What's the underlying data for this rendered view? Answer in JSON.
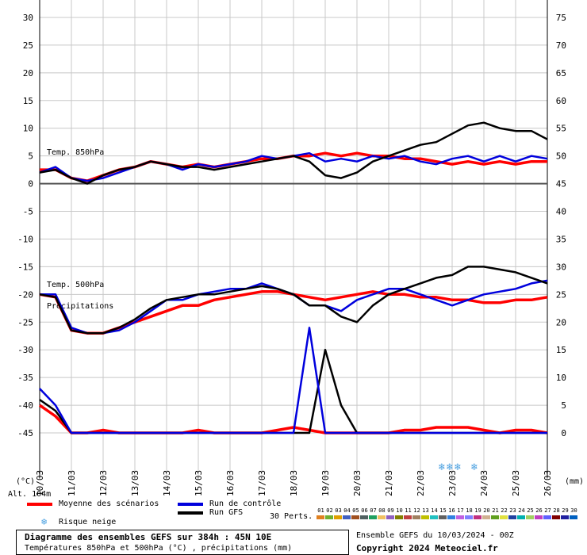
{
  "chart_data": {
    "type": "line",
    "title": "Diagramme des ensembles GEFS sur 384h : 45N 10E",
    "subtitle": "Températures 850hPa et 500hPa (°C) , précipitations (mm)",
    "left_axis": {
      "unit_label": "(°C)",
      "ticks": [
        30,
        25,
        20,
        15,
        10,
        5,
        0,
        -5,
        -10,
        -15,
        -20,
        -25,
        -30,
        -35,
        -40,
        -45
      ],
      "range": [
        -45,
        30
      ]
    },
    "right_axis": {
      "unit_label": "(mm)",
      "ticks": [
        75,
        70,
        65,
        60,
        55,
        50,
        45,
        40,
        35,
        30,
        25,
        20,
        15,
        10,
        5,
        0
      ],
      "range": [
        0,
        75
      ]
    },
    "x_labels": [
      "10/03",
      "11/03",
      "12/03",
      "13/03",
      "14/03",
      "15/03",
      "16/03",
      "17/03",
      "18/03",
      "19/03",
      "20/03",
      "21/03",
      "22/03",
      "23/03",
      "24/03",
      "25/03",
      "26/03"
    ],
    "x_range_hours": [
      0,
      384
    ],
    "annotations": [
      "Temp. 850hPa",
      "Temp. 500hPa",
      "Précipitations",
      "Alt. 104m"
    ],
    "series": [
      {
        "name": "Moyenne des scénarios",
        "role": "t850_mean",
        "color": "#ff0000",
        "x": [
          0,
          12,
          24,
          36,
          48,
          60,
          72,
          84,
          96,
          108,
          120,
          132,
          144,
          156,
          168,
          180,
          192,
          204,
          216,
          228,
          240,
          252,
          264,
          276,
          288,
          300,
          312,
          324,
          336,
          348,
          360,
          372,
          384
        ],
        "values": [
          2.5,
          2.5,
          1,
          0.5,
          1.5,
          2.5,
          3,
          4,
          3.5,
          3,
          3.5,
          3,
          3.5,
          4,
          4.5,
          4.5,
          5,
          5,
          5.5,
          5,
          5.5,
          5,
          5,
          4.5,
          4.5,
          4,
          3.5,
          4,
          3.5,
          4,
          3.5,
          4,
          4
        ]
      },
      {
        "name": "Moyenne des scénarios",
        "role": "t500_mean",
        "color": "#ff0000",
        "x": [
          0,
          12,
          24,
          36,
          48,
          60,
          72,
          84,
          96,
          108,
          120,
          132,
          144,
          156,
          168,
          180,
          192,
          204,
          216,
          228,
          240,
          252,
          264,
          276,
          288,
          300,
          312,
          324,
          336,
          348,
          360,
          372,
          384
        ],
        "values": [
          -20,
          -20.5,
          -26.5,
          -27,
          -27,
          -26,
          -25,
          -24,
          -23,
          -22,
          -22,
          -21,
          -20.5,
          -20,
          -19.5,
          -19.5,
          -20,
          -20.5,
          -21,
          -20.5,
          -20,
          -19.5,
          -20,
          -20,
          -20.5,
          -20.5,
          -21,
          -21,
          -21.5,
          -21.5,
          -21,
          -21,
          -20.5
        ]
      },
      {
        "name": "Run de contrôle",
        "role": "t850_control",
        "color": "#0000dd",
        "x": [
          0,
          12,
          24,
          36,
          48,
          60,
          72,
          84,
          96,
          108,
          120,
          132,
          144,
          156,
          168,
          180,
          192,
          204,
          216,
          228,
          240,
          252,
          264,
          276,
          288,
          300,
          312,
          324,
          336,
          348,
          360,
          372,
          384
        ],
        "values": [
          2,
          3,
          1,
          0.5,
          1,
          2,
          3,
          4,
          3.5,
          2.5,
          3.5,
          3,
          3.5,
          4,
          5,
          4.5,
          5,
          5.5,
          4,
          4.5,
          4,
          5,
          4.5,
          5,
          4,
          3.5,
          4.5,
          5,
          4,
          5,
          4,
          5,
          4.5
        ]
      },
      {
        "name": "Run GFS",
        "role": "t850_gfs",
        "color": "#000000",
        "x": [
          0,
          12,
          24,
          36,
          48,
          60,
          72,
          84,
          96,
          108,
          120,
          132,
          144,
          156,
          168,
          180,
          192,
          204,
          216,
          228,
          240,
          252,
          264,
          276,
          288,
          300,
          312,
          324,
          336,
          348,
          360,
          372,
          384
        ],
        "values": [
          2,
          2.5,
          1,
          0,
          1.5,
          2.5,
          3,
          4,
          3.5,
          3,
          3,
          2.5,
          3,
          3.5,
          4,
          4.5,
          5,
          4,
          1.5,
          1,
          2,
          4,
          5,
          6,
          7,
          7.5,
          9,
          10.5,
          11,
          10,
          9.5,
          9.5,
          8
        ]
      },
      {
        "name": "Run de contrôle",
        "role": "t500_control",
        "color": "#0000dd",
        "x": [
          0,
          12,
          24,
          36,
          48,
          60,
          72,
          84,
          96,
          108,
          120,
          132,
          144,
          156,
          168,
          180,
          192,
          204,
          216,
          228,
          240,
          252,
          264,
          276,
          288,
          300,
          312,
          324,
          336,
          348,
          360,
          372,
          384
        ],
        "values": [
          -20,
          -20,
          -26,
          -27,
          -27,
          -26.5,
          -25,
          -23,
          -21,
          -21,
          -20,
          -19.5,
          -19,
          -19,
          -18,
          -19,
          -20,
          -22,
          -22,
          -23,
          -21,
          -20,
          -19,
          -19,
          -20,
          -21,
          -22,
          -21,
          -20,
          -19.5,
          -19,
          -18,
          -17.5
        ]
      },
      {
        "name": "Run GFS",
        "role": "t500_gfs",
        "color": "#000000",
        "x": [
          0,
          12,
          24,
          36,
          48,
          60,
          72,
          84,
          96,
          108,
          120,
          132,
          144,
          156,
          168,
          180,
          192,
          204,
          216,
          228,
          240,
          252,
          264,
          276,
          288,
          300,
          312,
          324,
          336,
          348,
          360,
          372,
          384
        ],
        "values": [
          -20,
          -20.5,
          -26.5,
          -27,
          -27,
          -26,
          -24.5,
          -22.5,
          -21,
          -20.5,
          -20,
          -20,
          -19.5,
          -19,
          -18.5,
          -19,
          -20,
          -22,
          -22,
          -24,
          -25,
          -22,
          -20,
          -19,
          -18,
          -17,
          -16.5,
          -15,
          -15,
          -15.5,
          -16,
          -17,
          -18
        ]
      },
      {
        "name": "Moyenne des scénarios",
        "role": "precip_mean",
        "color": "#ff0000",
        "x": [
          0,
          12,
          24,
          36,
          48,
          60,
          72,
          84,
          96,
          108,
          120,
          132,
          144,
          156,
          168,
          180,
          192,
          204,
          216,
          228,
          240,
          252,
          264,
          276,
          288,
          300,
          312,
          324,
          336,
          348,
          360,
          372,
          384
        ],
        "values": [
          5,
          3,
          0,
          0,
          0.5,
          0,
          0,
          0,
          0,
          0,
          0.5,
          0,
          0,
          0,
          0,
          0.5,
          1,
          0.5,
          0,
          0,
          0,
          0,
          0,
          0.5,
          0.5,
          1,
          1,
          1,
          0.5,
          0,
          0.5,
          0.5,
          0
        ]
      },
      {
        "name": "Run GFS",
        "role": "precip_gfs",
        "color": "#000000",
        "x": [
          0,
          12,
          24,
          36,
          48,
          60,
          72,
          84,
          96,
          108,
          120,
          132,
          144,
          156,
          168,
          180,
          192,
          204,
          216,
          228,
          240,
          252,
          264,
          276,
          288,
          300,
          312,
          324,
          336,
          348,
          360,
          372,
          384
        ],
        "values": [
          6,
          4,
          0,
          0,
          0,
          0,
          0,
          0,
          0,
          0,
          0,
          0,
          0,
          0,
          0,
          0,
          0,
          0,
          15,
          5,
          0,
          0,
          0,
          0,
          0,
          0,
          0,
          0,
          0,
          0,
          0,
          0,
          0
        ]
      },
      {
        "name": "Run de contrôle",
        "role": "precip_control",
        "color": "#0000dd",
        "x": [
          0,
          12,
          24,
          36,
          48,
          60,
          72,
          84,
          96,
          108,
          120,
          132,
          144,
          156,
          168,
          180,
          192,
          204,
          216,
          228,
          240,
          252,
          264,
          276,
          288,
          300,
          312,
          324,
          336,
          348,
          360,
          372,
          384
        ],
        "values": [
          8,
          5,
          0,
          0,
          0,
          0,
          0,
          0,
          0,
          0,
          0,
          0,
          0,
          0,
          0,
          0,
          0,
          19,
          0,
          0,
          0,
          0,
          0,
          0,
          0,
          0,
          0,
          0,
          0,
          0,
          0,
          0,
          0
        ]
      }
    ],
    "snow_risk_dates": [
      "22/03",
      "23/03",
      "23/03",
      "23/03",
      "24/03"
    ],
    "grid": true,
    "legend": "bottom"
  },
  "legend": {
    "mean_label": "Moyenne des scénarios",
    "control_label": "Run de contrôle",
    "gfs_label": "Run GFS",
    "snow_label": "Risque neige",
    "perts_label": "30 Perts.",
    "mean_color": "#ff0000",
    "control_color": "#0000dd",
    "gfs_color": "#000000",
    "snow_color": "#4aa0e0"
  },
  "perturbations": {
    "labels": [
      "01",
      "02",
      "03",
      "04",
      "05",
      "06",
      "07",
      "08",
      "09",
      "10",
      "11",
      "12",
      "13",
      "14",
      "15",
      "16",
      "17",
      "18",
      "19",
      "20",
      "21",
      "22",
      "23",
      "24",
      "25",
      "26",
      "27",
      "28",
      "29",
      "30"
    ],
    "colors": [
      "#e08020",
      "#70b030",
      "#e0a000",
      "#4060c0",
      "#a05020",
      "#506060",
      "#20a060",
      "#f0c060",
      "#9060c0",
      "#808000",
      "#c04040",
      "#a08060",
      "#c0c000",
      "#20c0c0",
      "#606060",
      "#3080e0",
      "#c060e0",
      "#8080ff",
      "#c03080",
      "#d0b090",
      "#60a020",
      "#e0e040",
      "#2040a0",
      "#00b0b0",
      "#a0d060",
      "#c040c0",
      "#6060ff",
      "#800000",
      "#2020a0",
      "#0060c0"
    ]
  },
  "footer": {
    "title": "Diagramme des ensembles GEFS sur 384h : 45N 10E",
    "subtitle": "Températures 850hPa et 500hPa (°C) , précipitations (mm)",
    "run_info": "Ensemble GEFS du 10/03/2024 - 00Z",
    "copyright": "Copyright 2024 Meteociel.fr"
  }
}
